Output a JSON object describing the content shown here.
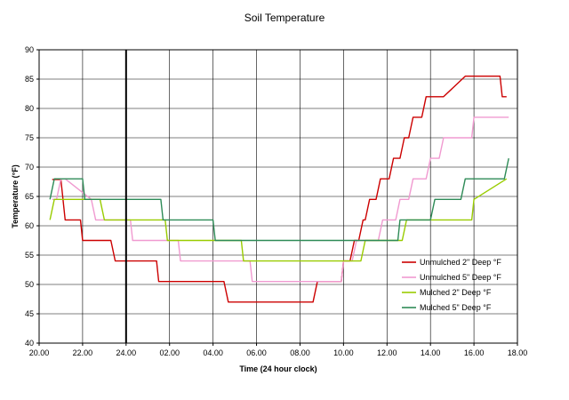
{
  "chart_data": {
    "type": "line",
    "title": "Soil Temperature",
    "xlabel": "Time (24 hour clock)",
    "ylabel": "Temperature (°F)",
    "xlim": [
      20.0,
      42.0
    ],
    "ylim": [
      40,
      90
    ],
    "grid": true,
    "legend_position": "right",
    "x_tick_labels": [
      "20.00",
      "22.00",
      "24.00",
      "02.00",
      "04.00",
      "06.00",
      "08.00",
      "10.00",
      "12.00",
      "14.00",
      "16.00",
      "18.00"
    ],
    "y_tick_labels": [
      "40",
      "45",
      "50",
      "55",
      "60",
      "65",
      "70",
      "75",
      "80",
      "85",
      "90"
    ],
    "series": [
      {
        "name": "Unmulched 2\" Deep °F",
        "color": "#cc0000",
        "x": [
          20.6,
          20.7,
          21.0,
          21.2,
          21.9,
          22.0,
          23.3,
          23.5,
          25.4,
          25.5,
          28.5,
          28.7,
          32.6,
          32.8,
          33.9,
          34.0,
          34.3,
          34.5,
          34.7,
          34.9,
          35.0,
          35.2,
          35.5,
          35.7,
          36.1,
          36.3,
          36.6,
          36.8,
          37.0,
          37.2,
          37.6,
          37.8,
          38.2,
          38.4,
          38.6,
          39.6,
          39.8,
          41.2,
          41.3,
          41.5
        ],
        "y": [
          67.9,
          67.9,
          67.9,
          61.0,
          61.0,
          57.5,
          57.5,
          54.0,
          54.0,
          50.5,
          50.5,
          47.0,
          47.0,
          50.5,
          50.5,
          54.0,
          54.0,
          57.5,
          57.5,
          61.0,
          61.0,
          64.5,
          64.5,
          68.0,
          68.0,
          71.5,
          71.5,
          75.0,
          75.0,
          78.5,
          78.5,
          82.0,
          82.0,
          82.0,
          82.0,
          85.5,
          85.5,
          85.5,
          82.0,
          82.0
        ]
      },
      {
        "name": "Unmulched 5\" Deep °F",
        "color": "#f09ad0",
        "x": [
          20.6,
          20.8,
          21.0,
          21.2,
          22.4,
          22.6,
          24.2,
          24.3,
          26.4,
          26.5,
          29.7,
          29.8,
          33.9,
          34.0,
          34.4,
          34.6,
          35.6,
          35.8,
          36.4,
          36.6,
          37.0,
          37.2,
          37.8,
          38.0,
          38.4,
          38.6,
          39.9,
          40.0,
          41.6
        ],
        "y": [
          64.5,
          64.5,
          68.0,
          68.0,
          64.5,
          61.0,
          61.0,
          57.5,
          57.5,
          54.0,
          54.0,
          50.5,
          50.5,
          54.0,
          54.0,
          57.5,
          57.5,
          61.0,
          61.0,
          64.5,
          64.5,
          68.0,
          68.0,
          71.5,
          71.5,
          75.0,
          75.0,
          78.5,
          78.5
        ]
      },
      {
        "name": "Mulched 2\" Deep °F",
        "color": "#99cc00",
        "x": [
          20.5,
          20.7,
          22.8,
          23.0,
          25.8,
          25.9,
          29.3,
          29.4,
          34.8,
          35.0,
          36.7,
          36.9,
          39.9,
          40.0,
          41.5
        ],
        "y": [
          61.0,
          64.5,
          64.5,
          61.0,
          61.0,
          57.5,
          57.5,
          54.0,
          54.0,
          57.5,
          57.5,
          61.0,
          61.0,
          64.5,
          68.0
        ]
      },
      {
        "name": "Mulched 5\" Deep °F",
        "color": "#2e8b57",
        "x": [
          20.5,
          20.7,
          22.0,
          22.1,
          25.6,
          25.7,
          28.0,
          28.1,
          36.5,
          36.6,
          37.0,
          37.2,
          38.0,
          38.2,
          39.4,
          39.6,
          41.4,
          41.6
        ],
        "y": [
          64.5,
          68.0,
          68.0,
          64.5,
          64.5,
          61.0,
          61.0,
          57.5,
          57.5,
          61.0,
          61.0,
          61.0,
          61.0,
          64.5,
          64.5,
          68.0,
          68.0,
          71.5
        ]
      }
    ],
    "annotations": [
      {
        "type": "vertical-line",
        "x": 24.0,
        "color": "#000000"
      }
    ]
  }
}
